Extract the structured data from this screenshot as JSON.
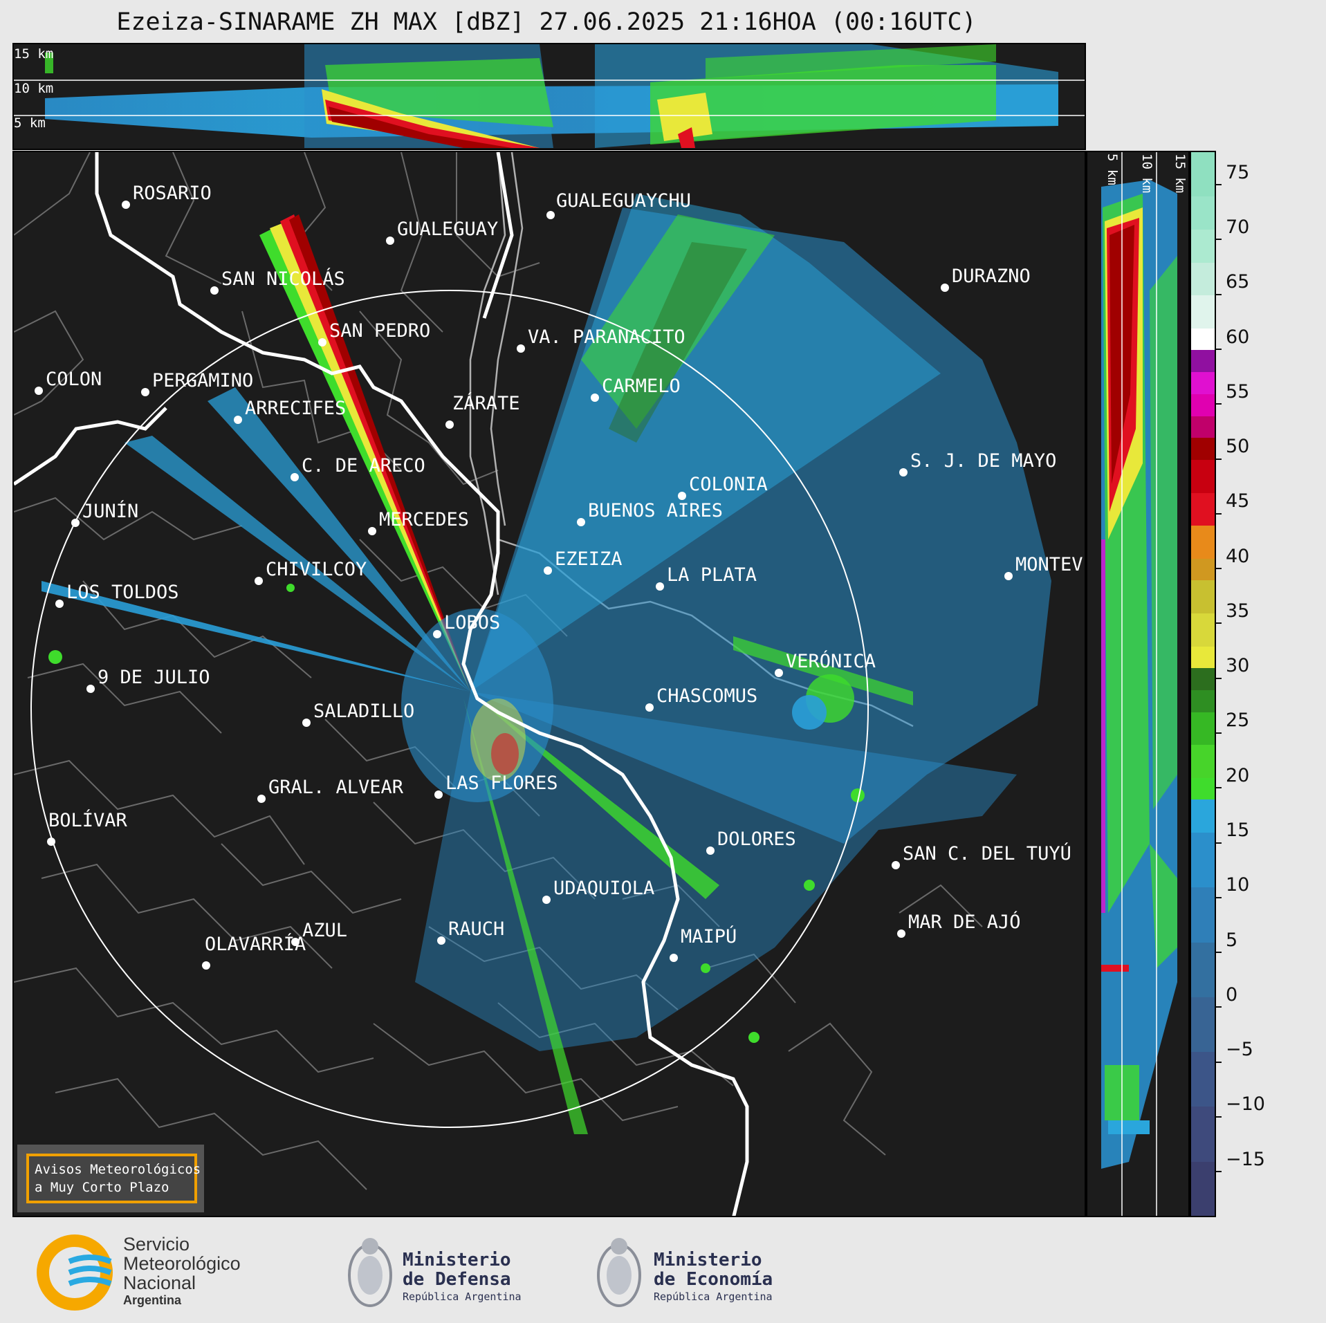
{
  "title": "Ezeiza-SINARAME ZH MAX [dBZ] 27.06.2025 21:16HOA (00:16UTC)",
  "top_panel": {
    "height_labels": [
      "15 km",
      "10 km",
      "5 km"
    ]
  },
  "side_panel": {
    "height_labels": [
      "5 km",
      "10 km",
      "15 km"
    ]
  },
  "map": {
    "radar_site": "EZEIZA",
    "cities": [
      {
        "name": "ROSARIO"
      },
      {
        "name": "GUALEGUAYCHU"
      },
      {
        "name": "GUALEGUAY"
      },
      {
        "name": "SAN NICOLÁS"
      },
      {
        "name": "DURAZNO"
      },
      {
        "name": "SAN PEDRO"
      },
      {
        "name": "VA. PARANACITO"
      },
      {
        "name": "COLON"
      },
      {
        "name": "PERGAMINO"
      },
      {
        "name": "CARMELO"
      },
      {
        "name": "ARRECIFES"
      },
      {
        "name": "ZÁRATE"
      },
      {
        "name": "S. J. DE MAYO"
      },
      {
        "name": "C. DE ARECO"
      },
      {
        "name": "COLONIA"
      },
      {
        "name": "JUNÍN"
      },
      {
        "name": "BUENOS AIRES"
      },
      {
        "name": "MERCEDES"
      },
      {
        "name": "EZEIZA"
      },
      {
        "name": "MONTEV"
      },
      {
        "name": "CHIVILCOY"
      },
      {
        "name": "LA PLATA"
      },
      {
        "name": "LOS TOLDOS"
      },
      {
        "name": "LOBOS"
      },
      {
        "name": "VERÓNICA"
      },
      {
        "name": "9 DE JULIO"
      },
      {
        "name": "CHASCOMUS"
      },
      {
        "name": "SALADILLO"
      },
      {
        "name": "GRAL. ALVEAR"
      },
      {
        "name": "LAS FLORES"
      },
      {
        "name": "BOLÍVAR"
      },
      {
        "name": "DOLORES"
      },
      {
        "name": "SAN C. DEL TUYÚ"
      },
      {
        "name": "UDAQUIOLA"
      },
      {
        "name": "MAR DE AJÓ"
      },
      {
        "name": "AZUL"
      },
      {
        "name": "RAUCH"
      },
      {
        "name": "OLAVARRÍA"
      },
      {
        "name": "MAIPÚ"
      }
    ],
    "warning_box": {
      "line1": "Avisos Meteorológicos",
      "line2": "a Muy Corto Plazo"
    }
  },
  "colorbar": {
    "unit": "dBZ",
    "ticks": [
      "75",
      "70",
      "65",
      "60",
      "55",
      "50",
      "45",
      "40",
      "35",
      "30",
      "25",
      "20",
      "15",
      "10",
      "5",
      "0",
      "−5",
      "−10",
      "−15"
    ],
    "colors": {
      "low": "#3b3f6e",
      "mid_blue": "#2f7fb8",
      "light_blue": "#2aa6dc",
      "green": "#3fdc2c",
      "dark_green": "#2c6e1e",
      "yellow": "#e8e83a",
      "orange": "#e88a1a",
      "red": "#e01020",
      "dark_red": "#a00000",
      "magenta": "#e010d0",
      "purple": "#9010a0",
      "white": "#ffffff",
      "mint": "#8fe0c0"
    }
  },
  "logos": {
    "smn": {
      "line1": "Servicio",
      "line2": "Meteorológico",
      "line3": "Nacional",
      "line4": "Argentina"
    },
    "defensa": {
      "line1": "Ministerio",
      "line2": "de Defensa",
      "line3": "República Argentina"
    },
    "economia": {
      "line1": "Ministerio",
      "line2": "de Economía",
      "line3": "República Argentina"
    }
  }
}
